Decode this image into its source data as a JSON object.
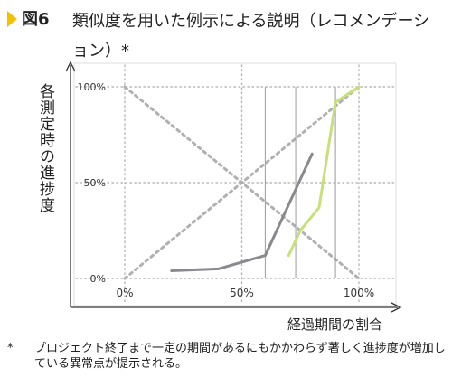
{
  "figure": {
    "number": "図6",
    "title": "類似度を用いた例示による説明（レコメンデーション）*"
  },
  "footnote": {
    "mark": "*",
    "text": "プロジェクト終了まで一定の期間があるにもかかわらず著しく進捗度が増加している異常点が提示される。"
  },
  "colors": {
    "accent": "#f2c200",
    "gray_series": "#8a8a8e",
    "green_series": "#c8e07a",
    "diagonal": "#b0b0b0",
    "grid": "#b8b8b8",
    "plot_border": "#dddddd"
  },
  "chart_data": {
    "type": "line",
    "title": "",
    "xlabel": "経過期間の割合",
    "ylabel": "各測定時の進捗度",
    "x_ticks": [
      "0%",
      "50%",
      "100%"
    ],
    "y_ticks": [
      "0%",
      "50%",
      "100%"
    ],
    "xlim": [
      -5,
      110
    ],
    "ylim": [
      -5,
      105
    ],
    "grid": true,
    "vertical_markers": [
      60,
      73,
      90
    ],
    "diagonals": [
      {
        "x": [
          0,
          100
        ],
        "y": [
          0,
          100
        ]
      },
      {
        "x": [
          0,
          100
        ],
        "y": [
          100,
          0
        ]
      }
    ],
    "series": [
      {
        "x": [
          20,
          40,
          60,
          80
        ],
        "y": [
          4,
          5,
          12,
          65
        ]
      },
      {
        "x": [
          70,
          75,
          83,
          90,
          100
        ],
        "y": [
          12,
          25,
          37,
          92,
          100
        ]
      }
    ]
  }
}
